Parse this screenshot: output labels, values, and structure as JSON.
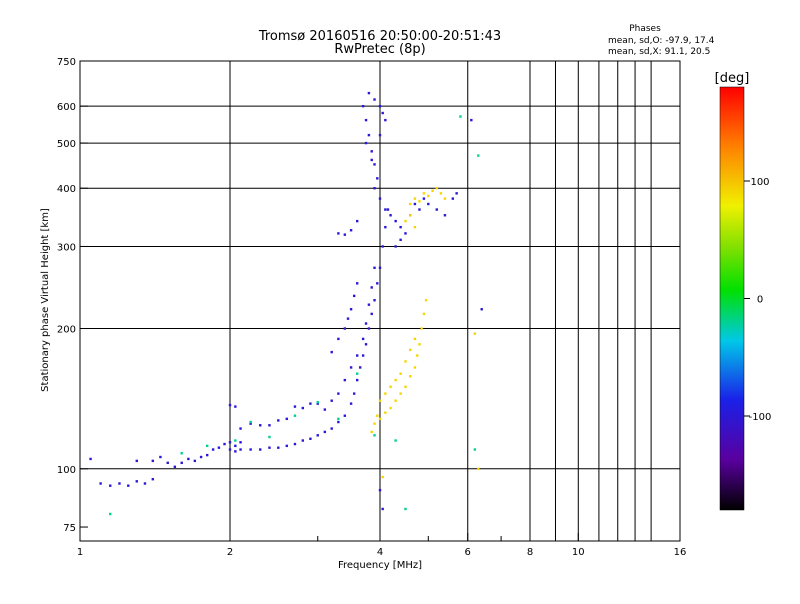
{
  "chart_data": {
    "type": "scatter",
    "title": "Tromsø 20160516 20:50:00-20:51:43",
    "subtitle": "RwPretec (8p)",
    "xlabel": "Frequency [MHz]",
    "ylabel": "Stationary phase Virtual Height [km]",
    "x_scale": "log",
    "y_scale": "log",
    "xlim": [
      1,
      16
    ],
    "ylim": [
      70,
      750
    ],
    "x_ticks": [
      1,
      2,
      4,
      6,
      8,
      10,
      16
    ],
    "x_tick_labels": [
      "1",
      "2",
      "4",
      "6",
      "8",
      "10",
      "16"
    ],
    "y_ticks": [
      75,
      100,
      200,
      300,
      400,
      500,
      600,
      750
    ],
    "y_tick_labels": [
      "75",
      "100",
      "200",
      "300",
      "400",
      "500",
      "600",
      "750"
    ],
    "grid": true,
    "stats": {
      "heading": "Phases",
      "line_o": "mean, sd,O: -97.9, 17.4",
      "line_x": "mean, sd,X:  91.1, 20.5"
    },
    "colorbar": {
      "unit_label": "[deg]",
      "min": -180,
      "max": 180,
      "ticks": [
        100,
        0,
        -100
      ],
      "tick_labels": [
        "100",
        "0",
        "-100"
      ]
    },
    "colors": {
      "o_mode": "#2020e0",
      "x_mode": "#e8e000",
      "grid": "#000000"
    },
    "series": [
      {
        "mode": "O",
        "phase_deg": -98,
        "points": [
          [
            1.05,
            105
          ],
          [
            1.1,
            93
          ],
          [
            1.15,
            92
          ],
          [
            1.2,
            93
          ],
          [
            1.25,
            92
          ],
          [
            1.3,
            94
          ],
          [
            1.35,
            93
          ],
          [
            1.4,
            95
          ],
          [
            1.3,
            104
          ],
          [
            1.4,
            104
          ],
          [
            1.45,
            106
          ],
          [
            1.5,
            103
          ],
          [
            1.55,
            101
          ],
          [
            1.6,
            103
          ],
          [
            1.65,
            105
          ],
          [
            1.7,
            104
          ],
          [
            1.75,
            106
          ],
          [
            1.8,
            107
          ],
          [
            1.85,
            110
          ],
          [
            1.9,
            111
          ],
          [
            1.95,
            113
          ],
          [
            2.0,
            114
          ],
          [
            2.05,
            112
          ],
          [
            2.1,
            114
          ],
          [
            2.0,
            110
          ],
          [
            2.05,
            109
          ],
          [
            2.1,
            110
          ],
          [
            2.2,
            110
          ],
          [
            2.3,
            110
          ],
          [
            2.4,
            111
          ],
          [
            2.5,
            111
          ],
          [
            2.6,
            112
          ],
          [
            2.7,
            113
          ],
          [
            2.8,
            115
          ],
          [
            2.9,
            116
          ],
          [
            3.0,
            118
          ],
          [
            3.1,
            120
          ],
          [
            3.2,
            122
          ],
          [
            3.3,
            126
          ],
          [
            3.4,
            130
          ],
          [
            3.5,
            138
          ],
          [
            3.55,
            145
          ],
          [
            3.6,
            155
          ],
          [
            3.65,
            165
          ],
          [
            3.7,
            175
          ],
          [
            3.75,
            185
          ],
          [
            3.8,
            200
          ],
          [
            3.85,
            215
          ],
          [
            3.9,
            230
          ],
          [
            3.95,
            250
          ],
          [
            4.0,
            270
          ],
          [
            4.05,
            300
          ],
          [
            4.1,
            330
          ],
          [
            4.15,
            360
          ],
          [
            2.0,
            137
          ],
          [
            2.05,
            136
          ],
          [
            2.1,
            122
          ],
          [
            2.2,
            125
          ],
          [
            2.3,
            124
          ],
          [
            2.4,
            124
          ],
          [
            2.5,
            127
          ],
          [
            2.6,
            128
          ],
          [
            2.7,
            136
          ],
          [
            2.8,
            135
          ],
          [
            2.9,
            138
          ],
          [
            3.0,
            138
          ],
          [
            3.1,
            134
          ],
          [
            3.2,
            140
          ],
          [
            3.3,
            145
          ],
          [
            3.4,
            155
          ],
          [
            3.5,
            165
          ],
          [
            3.6,
            175
          ],
          [
            3.7,
            190
          ],
          [
            3.75,
            205
          ],
          [
            3.8,
            225
          ],
          [
            3.85,
            245
          ],
          [
            3.9,
            270
          ],
          [
            3.2,
            178
          ],
          [
            3.3,
            190
          ],
          [
            3.4,
            200
          ],
          [
            3.45,
            210
          ],
          [
            3.5,
            220
          ],
          [
            3.55,
            235
          ],
          [
            3.6,
            250
          ],
          [
            3.7,
            600
          ],
          [
            3.75,
            560
          ],
          [
            3.8,
            520
          ],
          [
            3.85,
            480
          ],
          [
            3.9,
            450
          ],
          [
            3.95,
            420
          ],
          [
            3.8,
            640
          ],
          [
            3.9,
            620
          ],
          [
            4.0,
            600
          ],
          [
            4.05,
            580
          ],
          [
            4.1,
            560
          ],
          [
            4.0,
            520
          ],
          [
            3.75,
            500
          ],
          [
            3.85,
            460
          ],
          [
            3.9,
            400
          ],
          [
            4.0,
            380
          ],
          [
            4.1,
            360
          ],
          [
            4.2,
            350
          ],
          [
            4.3,
            340
          ],
          [
            4.4,
            330
          ],
          [
            4.5,
            320
          ],
          [
            4.6,
            350
          ],
          [
            4.7,
            370
          ],
          [
            4.8,
            360
          ],
          [
            4.9,
            380
          ],
          [
            5.0,
            370
          ],
          [
            5.2,
            360
          ],
          [
            5.4,
            350
          ],
          [
            5.6,
            380
          ],
          [
            5.7,
            390
          ],
          [
            4.3,
            300
          ],
          [
            4.4,
            310
          ],
          [
            3.3,
            320
          ],
          [
            3.4,
            318
          ],
          [
            3.5,
            325
          ],
          [
            3.6,
            340
          ],
          [
            4.0,
            90
          ],
          [
            4.05,
            82
          ],
          [
            6.4,
            220
          ],
          [
            6.1,
            560
          ]
        ]
      },
      {
        "mode": "X",
        "phase_deg": 91,
        "points": [
          [
            3.85,
            120
          ],
          [
            3.9,
            125
          ],
          [
            3.95,
            130
          ],
          [
            4.0,
            128
          ],
          [
            4.1,
            132
          ],
          [
            4.2,
            135
          ],
          [
            4.3,
            140
          ],
          [
            4.4,
            145
          ],
          [
            4.5,
            150
          ],
          [
            4.6,
            158
          ],
          [
            4.7,
            165
          ],
          [
            4.75,
            175
          ],
          [
            4.8,
            185
          ],
          [
            4.85,
            200
          ],
          [
            4.9,
            215
          ],
          [
            4.95,
            230
          ],
          [
            4.0,
            140
          ],
          [
            4.1,
            145
          ],
          [
            4.2,
            150
          ],
          [
            4.3,
            155
          ],
          [
            4.4,
            160
          ],
          [
            4.5,
            170
          ],
          [
            4.6,
            180
          ],
          [
            4.7,
            190
          ],
          [
            4.6,
            370
          ],
          [
            4.7,
            380
          ],
          [
            4.8,
            375
          ],
          [
            4.9,
            390
          ],
          [
            5.0,
            385
          ],
          [
            5.1,
            395
          ],
          [
            5.2,
            400
          ],
          [
            5.3,
            390
          ],
          [
            5.4,
            380
          ],
          [
            4.5,
            340
          ],
          [
            4.6,
            350
          ],
          [
            4.7,
            330
          ],
          [
            6.3,
            100
          ],
          [
            6.2,
            195
          ],
          [
            4.05,
            96
          ]
        ]
      },
      {
        "mode": "intermediate",
        "phase_deg": -20,
        "points": [
          [
            1.6,
            108
          ],
          [
            1.8,
            112
          ],
          [
            2.05,
            115
          ],
          [
            2.4,
            117
          ],
          [
            2.7,
            130
          ],
          [
            3.0,
            139
          ],
          [
            3.3,
            128
          ],
          [
            3.6,
            160
          ],
          [
            3.9,
            118
          ],
          [
            4.3,
            115
          ],
          [
            4.5,
            82
          ],
          [
            6.3,
            470
          ],
          [
            6.2,
            110
          ],
          [
            1.15,
            80
          ],
          [
            5.8,
            570
          ],
          [
            2.2,
            126
          ]
        ]
      }
    ]
  }
}
